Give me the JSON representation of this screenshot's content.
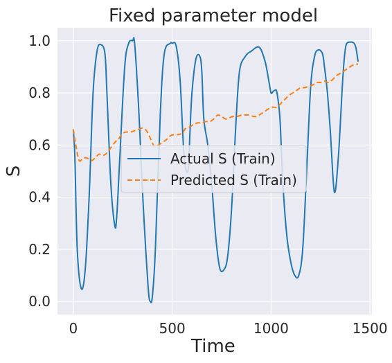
{
  "chart_data": {
    "type": "line",
    "title": "Fixed parameter model",
    "xlabel": "Time",
    "ylabel": "S",
    "xlim": [
      -80,
      1510
    ],
    "ylim": [
      -0.05,
      1.05
    ],
    "xticks": [
      0,
      500,
      1000,
      1500
    ],
    "yticks": [
      0.0,
      0.2,
      0.4,
      0.6,
      0.8,
      1.0
    ],
    "xtick_labels": [
      "0",
      "500",
      "1000",
      "1500"
    ],
    "ytick_labels": [
      "0.0",
      "0.2",
      "0.4",
      "0.6",
      "0.8",
      "1.0"
    ],
    "grid": true,
    "legend_position": "center",
    "series": [
      {
        "name": "Actual S (Train)",
        "color": "#1f77b4",
        "dash": "solid",
        "x": [
          0,
          8,
          20,
          40,
          60,
          80,
          100,
          120,
          140,
          160,
          170,
          190,
          210,
          220,
          235,
          260,
          280,
          300,
          310,
          330,
          345,
          360,
          380,
          390,
          400,
          415,
          440,
          460,
          490,
          500,
          520,
          540,
          560,
          580,
          590,
          600,
          620,
          640,
          650,
          660,
          680,
          700,
          720,
          740,
          760,
          780,
          800,
          820,
          840,
          870,
          900,
          940,
          970,
          990,
          1000,
          1010,
          1020,
          1030,
          1045,
          1060,
          1080,
          1100,
          1120,
          1140,
          1160,
          1180,
          1200,
          1220,
          1240,
          1260,
          1270,
          1285,
          1300,
          1320,
          1340,
          1360,
          1370,
          1380,
          1400,
          1420,
          1430,
          1440
        ],
        "y": [
          0.66,
          0.55,
          0.2,
          0.05,
          0.12,
          0.4,
          0.8,
          0.96,
          0.985,
          0.95,
          0.8,
          0.45,
          0.29,
          0.33,
          0.55,
          0.9,
          0.99,
          1.0,
          0.99,
          0.75,
          0.5,
          0.28,
          0.04,
          0.0,
          0.02,
          0.2,
          0.72,
          0.95,
          0.99,
          0.99,
          0.98,
          0.85,
          0.56,
          0.5,
          0.65,
          0.8,
          0.93,
          0.94,
          0.88,
          0.7,
          0.6,
          0.45,
          0.25,
          0.13,
          0.12,
          0.17,
          0.35,
          0.65,
          0.88,
          0.94,
          0.96,
          0.975,
          0.92,
          0.84,
          0.8,
          0.805,
          0.81,
          0.8,
          0.7,
          0.45,
          0.25,
          0.15,
          0.1,
          0.1,
          0.2,
          0.5,
          0.82,
          0.94,
          0.965,
          0.95,
          0.9,
          0.8,
          0.65,
          0.42,
          0.55,
          0.82,
          0.93,
          0.985,
          0.995,
          0.99,
          0.97,
          0.92
        ]
      },
      {
        "name": "Predicted S (Train)",
        "color": "#ff7f0e",
        "dash": "dashed",
        "x": [
          0,
          15,
          30,
          50,
          70,
          90,
          110,
          130,
          150,
          170,
          190,
          210,
          230,
          250,
          270,
          290,
          310,
          330,
          350,
          370,
          390,
          410,
          430,
          450,
          470,
          490,
          510,
          530,
          550,
          570,
          590,
          610,
          630,
          650,
          670,
          690,
          710,
          730,
          750,
          770,
          790,
          810,
          830,
          850,
          870,
          890,
          910,
          930,
          950,
          970,
          990,
          1010,
          1030,
          1050,
          1070,
          1090,
          1110,
          1130,
          1150,
          1170,
          1190,
          1210,
          1230,
          1250,
          1270,
          1290,
          1310,
          1330,
          1350,
          1370,
          1390,
          1410,
          1430,
          1440
        ],
        "y": [
          0.66,
          0.59,
          0.54,
          0.55,
          0.55,
          0.54,
          0.55,
          0.565,
          0.56,
          0.57,
          0.59,
          0.61,
          0.625,
          0.645,
          0.65,
          0.65,
          0.655,
          0.66,
          0.665,
          0.655,
          0.625,
          0.595,
          0.6,
          0.61,
          0.62,
          0.635,
          0.64,
          0.64,
          0.645,
          0.665,
          0.67,
          0.68,
          0.685,
          0.685,
          0.69,
          0.69,
          0.7,
          0.715,
          0.71,
          0.7,
          0.705,
          0.71,
          0.71,
          0.715,
          0.715,
          0.715,
          0.71,
          0.71,
          0.72,
          0.73,
          0.74,
          0.745,
          0.745,
          0.76,
          0.775,
          0.79,
          0.8,
          0.81,
          0.82,
          0.82,
          0.825,
          0.83,
          0.84,
          0.84,
          0.845,
          0.84,
          0.85,
          0.865,
          0.875,
          0.885,
          0.895,
          0.905,
          0.91,
          0.91
        ]
      }
    ]
  }
}
